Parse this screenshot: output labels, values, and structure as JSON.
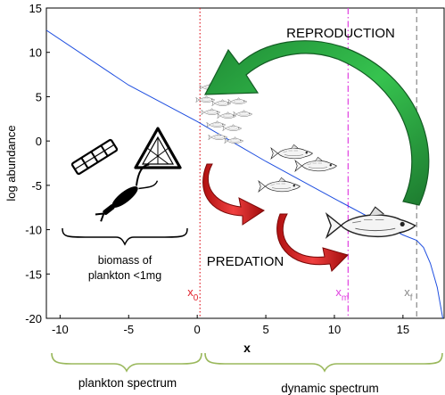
{
  "chart_data": {
    "type": "line",
    "ylabel": "log abundance",
    "xlabel": "x",
    "xlim": [
      -11,
      18
    ],
    "ylim": [
      -20,
      15
    ],
    "x_ticks": [
      -10,
      -5,
      0,
      5,
      10,
      15
    ],
    "y_ticks": [
      15,
      10,
      5,
      0,
      -5,
      -10,
      -15,
      -20
    ],
    "series": [
      {
        "color": "#1f4fe0",
        "x": [
          -11,
          -5,
          0,
          5,
          10,
          14,
          15,
          16,
          16.5,
          17,
          17.5,
          17.9
        ],
        "y": [
          12.5,
          6.3,
          2.2,
          -2.3,
          -6.5,
          -9.8,
          -10.6,
          -11.2,
          -12.0,
          -13.8,
          -16.5,
          -20
        ]
      }
    ],
    "markers": [
      {
        "x": 0.2,
        "label": "x",
        "sub": "0",
        "color": "#e0202a",
        "style": "dotted"
      },
      {
        "x": 11,
        "label": "x",
        "sub": "m",
        "color": "#e040e0",
        "style": "dashdot"
      },
      {
        "x": 16,
        "label": "x",
        "sub": "f",
        "color": "#888888",
        "style": "dashed"
      }
    ]
  },
  "annotations": {
    "reproduction": "REPRODUCTION",
    "predation": "PREDATION",
    "biomass_line1": "biomass of",
    "biomass_line2": "plankton <1mg"
  },
  "spectra": {
    "plankton": "plankton spectrum",
    "dynamic": "dynamic spectrum"
  },
  "colors": {
    "reproduction": "#2fb84a",
    "predation": "#e0202a",
    "brace": "#9ab85c",
    "line": "#1f4fe0",
    "arrow_green": "#2aa040",
    "arrow_red": "#d82020"
  },
  "icons": [
    "diatom-icon",
    "triangle-plankton-icon",
    "copepod-icon",
    "fish-school-icon",
    "fish-icon"
  ]
}
